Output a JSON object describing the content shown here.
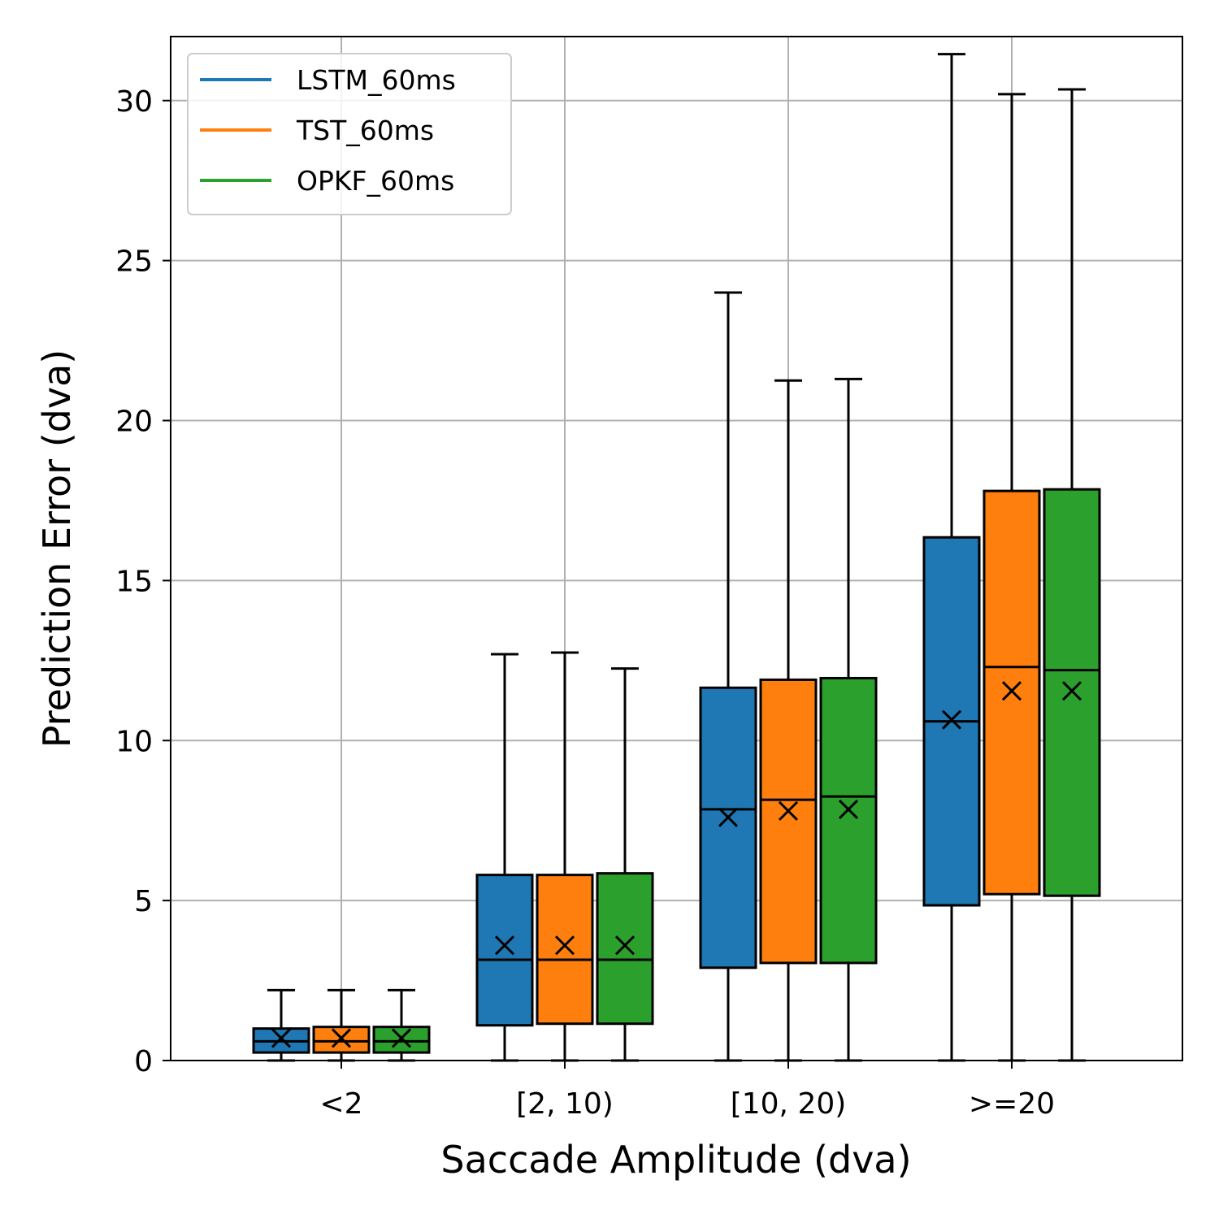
{
  "chart_data": {
    "type": "box",
    "title": "",
    "xlabel": "Saccade Amplitude (dva)",
    "ylabel": "Prediction Error (dva)",
    "ylim": [
      0,
      32
    ],
    "yticks": [
      0,
      5,
      10,
      15,
      20,
      25,
      30
    ],
    "grid": true,
    "legend_position": "top-left",
    "categories": [
      "<2",
      "[2, 10)",
      "[10, 20)",
      ">=20"
    ],
    "series": [
      {
        "name": "LSTM_60ms",
        "color": "#1f77b4",
        "stats": [
          {
            "min": 0,
            "q1": 0.25,
            "median": 0.6,
            "q3": 1.0,
            "max": 2.2,
            "mean": 0.7
          },
          {
            "min": 0,
            "q1": 1.1,
            "median": 3.15,
            "q3": 5.8,
            "max": 12.7,
            "mean": 3.6
          },
          {
            "min": 0,
            "q1": 2.9,
            "median": 7.85,
            "q3": 11.65,
            "max": 24.0,
            "mean": 7.6
          },
          {
            "min": 0,
            "q1": 4.85,
            "median": 10.6,
            "q3": 16.35,
            "max": 31.45,
            "mean": 10.65
          }
        ]
      },
      {
        "name": "TST_60ms",
        "color": "#ff7f0e",
        "stats": [
          {
            "min": 0,
            "q1": 0.25,
            "median": 0.6,
            "q3": 1.05,
            "max": 2.2,
            "mean": 0.7
          },
          {
            "min": 0,
            "q1": 1.15,
            "median": 3.15,
            "q3": 5.8,
            "max": 12.75,
            "mean": 3.6
          },
          {
            "min": 0,
            "q1": 3.05,
            "median": 8.15,
            "q3": 11.9,
            "max": 21.25,
            "mean": 7.8
          },
          {
            "min": 0,
            "q1": 5.2,
            "median": 12.3,
            "q3": 17.8,
            "max": 30.2,
            "mean": 11.55
          }
        ]
      },
      {
        "name": "OPKF_60ms",
        "color": "#2ca02c",
        "stats": [
          {
            "min": 0,
            "q1": 0.25,
            "median": 0.6,
            "q3": 1.05,
            "max": 2.2,
            "mean": 0.7
          },
          {
            "min": 0,
            "q1": 1.15,
            "median": 3.15,
            "q3": 5.85,
            "max": 12.25,
            "mean": 3.6
          },
          {
            "min": 0,
            "q1": 3.05,
            "median": 8.25,
            "q3": 11.95,
            "max": 21.3,
            "mean": 7.85
          },
          {
            "min": 0,
            "q1": 5.15,
            "median": 12.2,
            "q3": 17.85,
            "max": 30.35,
            "mean": 11.55
          }
        ]
      }
    ]
  }
}
